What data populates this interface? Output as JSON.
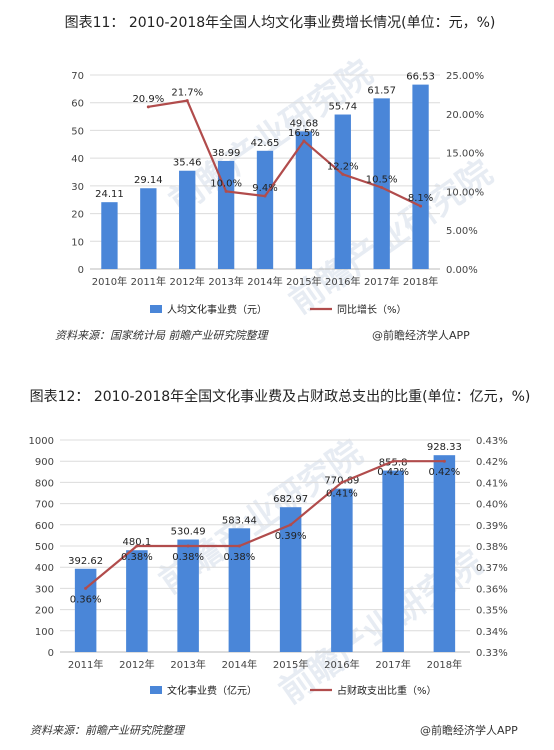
{
  "figure1": {
    "title": "图表11： 2010-2018年全国人均文化事业费增长情况(单位：元，%)",
    "source": "资料来源：国家统计局 前瞻产业研究院整理",
    "brand": "@前瞻经济学人APP"
  },
  "figure2": {
    "title": "图表12： 2010-2018年全国文化事业费及占财政总支出的比重(单位：亿元，%)",
    "source": "资料来源：前瞻产业研究院整理",
    "brand": "@前瞻经济学人APP"
  },
  "watermark": "前瞻产业研究院",
  "colors": {
    "bar": "#4a86d8",
    "line": "#b14c4c",
    "grid": "#dcdcdc",
    "axis_text": "#444444"
  },
  "chart_data": [
    {
      "type": "bar",
      "categories": [
        "2010年",
        "2011年",
        "2012年",
        "2013年",
        "2014年",
        "2015年",
        "2016年",
        "2017年",
        "2018年"
      ],
      "series": [
        {
          "name": "人均文化事业费（元）",
          "type": "bar",
          "axis": "left",
          "values": [
            24.11,
            29.14,
            35.46,
            38.99,
            42.65,
            49.68,
            55.74,
            61.57,
            66.53
          ],
          "labels": [
            "24.11",
            "29.14",
            "35.46",
            "38.99",
            "42.65",
            "49.68",
            "55.74",
            "61.57",
            "66.53"
          ]
        },
        {
          "name": "同比增长（%）",
          "type": "line",
          "axis": "right",
          "values": [
            null,
            20.9,
            21.7,
            10.0,
            9.4,
            16.5,
            12.2,
            10.5,
            8.1
          ],
          "labels": [
            null,
            "20.9%",
            "21.7%",
            "10.0%",
            "9.4%",
            "16.5%",
            "12.2%",
            "10.5%",
            "8.1%"
          ]
        }
      ],
      "y_left": {
        "min": 0,
        "max": 70,
        "ticks": [
          "0",
          "10",
          "20",
          "30",
          "40",
          "50",
          "60",
          "70"
        ]
      },
      "y_right": {
        "min": 0,
        "max": 25,
        "ticks": [
          "0.00%",
          "5.00%",
          "10.00%",
          "15.00%",
          "20.00%",
          "25.00%"
        ]
      },
      "legend": "bottom",
      "grid": true
    },
    {
      "type": "bar",
      "categories": [
        "2011年",
        "2012年",
        "2013年",
        "2014年",
        "2015年",
        "2016年",
        "2017年",
        "2018年"
      ],
      "series": [
        {
          "name": "文化事业费（亿元）",
          "type": "bar",
          "axis": "left",
          "values": [
            392.62,
            480.1,
            530.49,
            583.44,
            682.97,
            770.69,
            855.8,
            928.33
          ],
          "labels": [
            "392.62",
            "480.1",
            "530.49",
            "583.44",
            "682.97",
            "770.69",
            "855.8",
            "928.33"
          ]
        },
        {
          "name": "占财政支出比重（%）",
          "type": "line",
          "axis": "right",
          "values": [
            0.36,
            0.38,
            0.38,
            0.38,
            0.39,
            0.41,
            0.42,
            0.42
          ],
          "labels": [
            "0.36%",
            "0.38%",
            "0.38%",
            "0.38%",
            "0.39%",
            "0.41%",
            "0.42%",
            "0.42%"
          ]
        }
      ],
      "y_left": {
        "min": 0,
        "max": 1000,
        "ticks": [
          "0",
          "100",
          "200",
          "300",
          "400",
          "500",
          "600",
          "700",
          "800",
          "900",
          "1000"
        ]
      },
      "y_right": {
        "min": 0.33,
        "max": 0.43,
        "ticks": [
          "0.33%",
          "0.34%",
          "0.35%",
          "0.36%",
          "0.37%",
          "0.38%",
          "0.39%",
          "0.40%",
          "0.41%",
          "0.42%",
          "0.43%"
        ]
      },
      "legend": "bottom",
      "grid": true
    }
  ]
}
